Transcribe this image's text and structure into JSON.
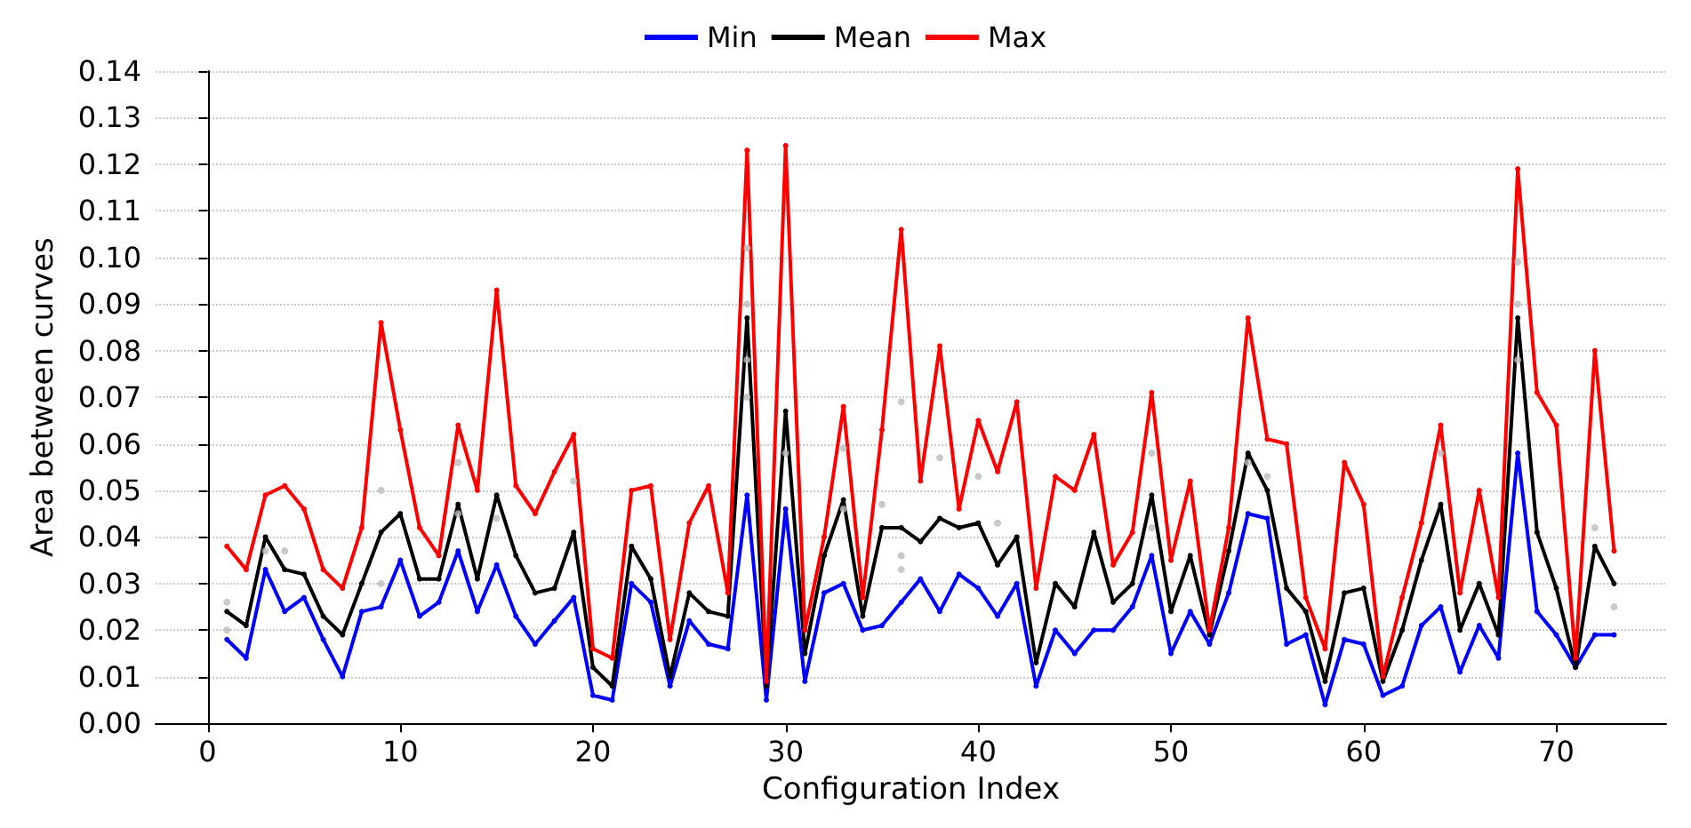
{
  "chart_data": {
    "type": "line",
    "xlabel": "Configuration Index",
    "ylabel": "Area between curves",
    "x": [
      1,
      2,
      3,
      4,
      5,
      6,
      7,
      8,
      9,
      10,
      11,
      12,
      13,
      14,
      15,
      16,
      17,
      18,
      19,
      20,
      21,
      22,
      23,
      24,
      25,
      26,
      27,
      28,
      29,
      30,
      31,
      32,
      33,
      34,
      35,
      36,
      37,
      38,
      39,
      40,
      41,
      42,
      43,
      44,
      45,
      46,
      47,
      48,
      49,
      50,
      51,
      52,
      53,
      54,
      55,
      56,
      57,
      58,
      59,
      60,
      61,
      62,
      63,
      64,
      65,
      66,
      67,
      68,
      69,
      70,
      71,
      72,
      73
    ],
    "series": [
      {
        "type": "scatter",
        "color": "#bbbbbb",
        "x": [
          1,
          1,
          3,
          4,
          9,
          9,
          13,
          13,
          15,
          19,
          28,
          28,
          28,
          28,
          30,
          33,
          33,
          35,
          36,
          36,
          36,
          38,
          40,
          41,
          49,
          49,
          54,
          55,
          64,
          68,
          68,
          68,
          72,
          73
        ],
        "values": [
          0.026,
          0.02,
          0.037,
          0.037,
          0.05,
          0.03,
          0.056,
          0.045,
          0.044,
          0.052,
          0.102,
          0.09,
          0.078,
          0.07,
          0.058,
          0.059,
          0.046,
          0.047,
          0.069,
          0.036,
          0.033,
          0.057,
          0.053,
          0.043,
          0.058,
          0.042,
          0.056,
          0.053,
          0.058,
          0.099,
          0.09,
          0.078,
          0.042,
          0.025
        ]
      },
      {
        "name": "Min",
        "color": "#0000ff",
        "values": [
          0.018,
          0.014,
          0.033,
          0.024,
          0.027,
          0.018,
          0.01,
          0.024,
          0.025,
          0.035,
          0.023,
          0.026,
          0.037,
          0.024,
          0.034,
          0.023,
          0.017,
          0.022,
          0.027,
          0.006,
          0.005,
          0.03,
          0.026,
          0.008,
          0.022,
          0.017,
          0.016,
          0.049,
          0.005,
          0.046,
          0.009,
          0.028,
          0.03,
          0.02,
          0.021,
          0.026,
          0.031,
          0.024,
          0.032,
          0.029,
          0.023,
          0.03,
          0.008,
          0.02,
          0.015,
          0.02,
          0.02,
          0.025,
          0.036,
          0.015,
          0.024,
          0.017,
          0.028,
          0.045,
          0.044,
          0.017,
          0.019,
          0.004,
          0.018,
          0.017,
          0.006,
          0.008,
          0.021,
          0.025,
          0.011,
          0.021,
          0.014,
          0.058,
          0.024,
          0.019,
          0.012,
          0.019,
          0.019
        ]
      },
      {
        "name": "Mean",
        "color": "#000000",
        "values": [
          0.024,
          0.021,
          0.04,
          0.033,
          0.032,
          0.023,
          0.019,
          0.03,
          0.041,
          0.045,
          0.031,
          0.031,
          0.047,
          0.031,
          0.049,
          0.036,
          0.028,
          0.029,
          0.041,
          0.012,
          0.008,
          0.038,
          0.031,
          0.01,
          0.028,
          0.024,
          0.023,
          0.087,
          0.008,
          0.067,
          0.015,
          0.036,
          0.048,
          0.023,
          0.042,
          0.042,
          0.039,
          0.044,
          0.042,
          0.043,
          0.034,
          0.04,
          0.013,
          0.03,
          0.025,
          0.041,
          0.026,
          0.03,
          0.049,
          0.024,
          0.036,
          0.019,
          0.037,
          0.058,
          0.05,
          0.029,
          0.024,
          0.009,
          0.028,
          0.029,
          0.009,
          0.02,
          0.035,
          0.047,
          0.02,
          0.03,
          0.019,
          0.087,
          0.041,
          0.029,
          0.012,
          0.038,
          0.03
        ]
      },
      {
        "name": "Max",
        "color": "#ff0000",
        "values": [
          0.038,
          0.033,
          0.049,
          0.051,
          0.046,
          0.033,
          0.029,
          0.042,
          0.086,
          0.063,
          0.042,
          0.036,
          0.064,
          0.05,
          0.093,
          0.051,
          0.045,
          0.054,
          0.062,
          0.016,
          0.014,
          0.05,
          0.051,
          0.018,
          0.043,
          0.051,
          0.028,
          0.123,
          0.009,
          0.124,
          0.02,
          0.04,
          0.068,
          0.027,
          0.063,
          0.106,
          0.052,
          0.081,
          0.046,
          0.065,
          0.054,
          0.069,
          0.029,
          0.053,
          0.05,
          0.062,
          0.034,
          0.041,
          0.071,
          0.035,
          0.052,
          0.02,
          0.042,
          0.087,
          0.061,
          0.06,
          0.027,
          0.016,
          0.056,
          0.047,
          0.01,
          0.027,
          0.043,
          0.064,
          0.028,
          0.05,
          0.027,
          0.119,
          0.071,
          0.064,
          0.014,
          0.08,
          0.037
        ]
      }
    ],
    "xlim": [
      -2.7,
      75.7
    ],
    "xticks": [
      0,
      10,
      20,
      30,
      40,
      50,
      60,
      70
    ],
    "ylim": [
      0,
      0.14
    ],
    "yticks": [
      {
        "value": 0,
        "label": "0.00"
      },
      0.01,
      0.02,
      0.03,
      0.04,
      0.05,
      0.06,
      0.07,
      0.08,
      0.09,
      {
        "value": 0.1,
        "label": "0.10"
      },
      0.11,
      0.12,
      0.13,
      0.14
    ],
    "grid": "y",
    "legend": "top",
    "marker": "circle",
    "line_style": "solid"
  }
}
